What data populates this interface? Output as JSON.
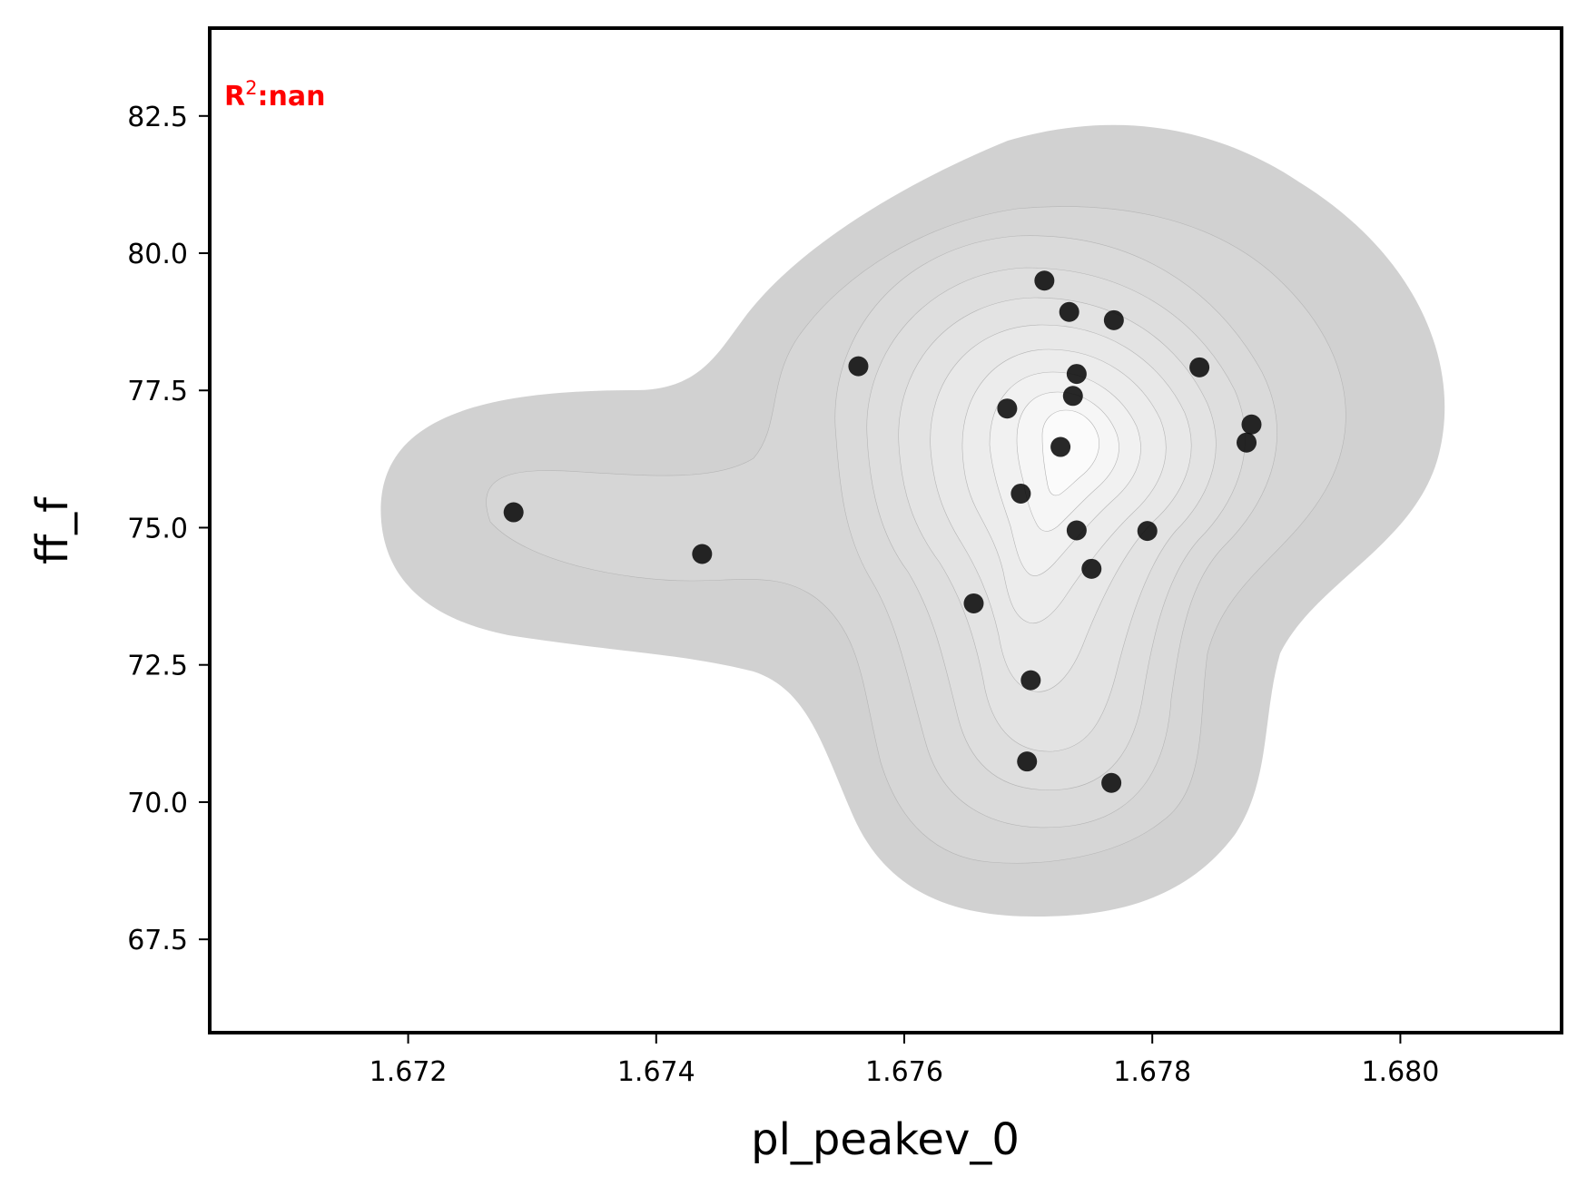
{
  "chart_data": {
    "type": "scatter",
    "title": "",
    "xlabel": "pl_peakev_0",
    "ylabel": "ff_f",
    "xlim": [
      1.6704,
      1.6813
    ],
    "ylim": [
      65.8,
      84.1
    ],
    "x_ticks": [
      1.672,
      1.674,
      1.676,
      1.678,
      1.68
    ],
    "x_tick_labels": [
      "1.672",
      "1.674",
      "1.676",
      "1.678",
      "1.680"
    ],
    "y_ticks": [
      67.5,
      70.0,
      72.5,
      75.0,
      77.5,
      80.0,
      82.5
    ],
    "y_tick_labels": [
      "67.5",
      "70.0",
      "72.5",
      "75.0",
      "77.5",
      "80.0",
      "82.5"
    ],
    "grid": false,
    "annotation": {
      "prefix": "R",
      "sup": "2",
      "suffix": ":nan",
      "color": "#ff0000"
    },
    "density_shading": "gray contour levels (kde)",
    "points": [
      {
        "x": 1.67285,
        "y": 75.28
      },
      {
        "x": 1.67437,
        "y": 74.52
      },
      {
        "x": 1.67563,
        "y": 77.94
      },
      {
        "x": 1.67713,
        "y": 79.5
      },
      {
        "x": 1.67733,
        "y": 78.93
      },
      {
        "x": 1.67769,
        "y": 78.78
      },
      {
        "x": 1.67739,
        "y": 77.8
      },
      {
        "x": 1.67736,
        "y": 77.4
      },
      {
        "x": 1.67683,
        "y": 77.17
      },
      {
        "x": 1.67726,
        "y": 76.47
      },
      {
        "x": 1.67838,
        "y": 77.92
      },
      {
        "x": 1.6788,
        "y": 76.88
      },
      {
        "x": 1.67876,
        "y": 76.55
      },
      {
        "x": 1.67694,
        "y": 75.62
      },
      {
        "x": 1.67739,
        "y": 74.95
      },
      {
        "x": 1.67796,
        "y": 74.94
      },
      {
        "x": 1.67751,
        "y": 74.25
      },
      {
        "x": 1.67656,
        "y": 73.62
      },
      {
        "x": 1.67702,
        "y": 72.22
      },
      {
        "x": 1.67699,
        "y": 70.74
      },
      {
        "x": 1.67767,
        "y": 70.35
      }
    ]
  }
}
